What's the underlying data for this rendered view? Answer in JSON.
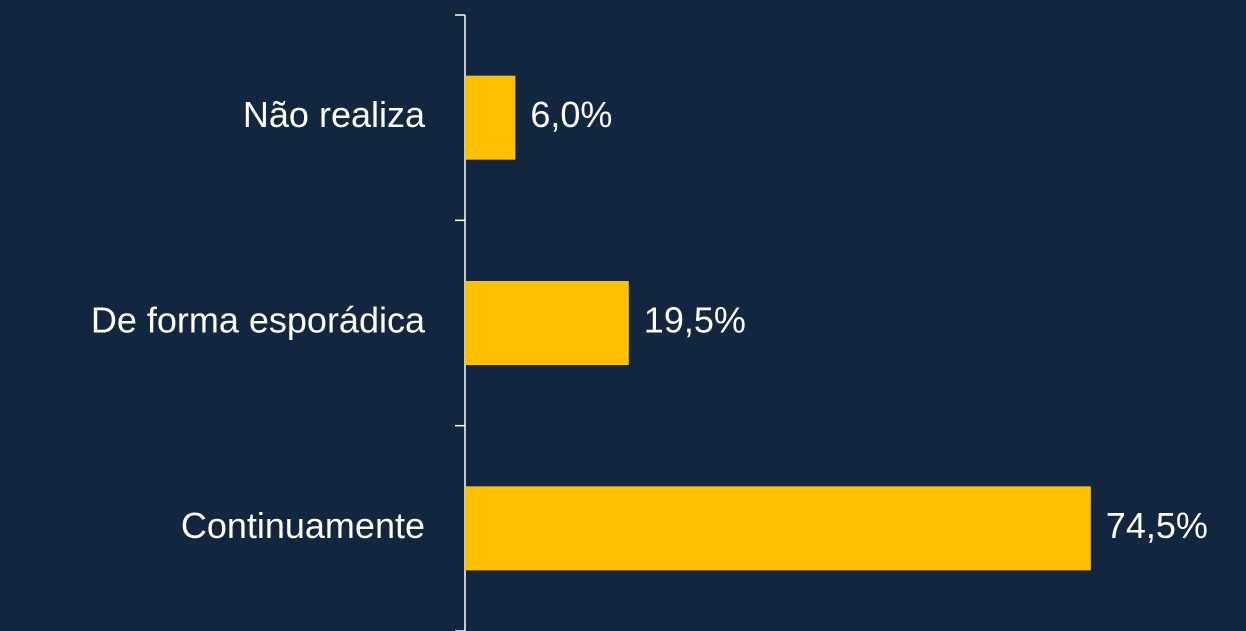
{
  "chart_data": {
    "type": "bar",
    "orientation": "horizontal",
    "categories": [
      "Não realiza",
      "De forma esporádica",
      "Continuamente"
    ],
    "values": [
      6.0,
      19.5,
      74.5
    ],
    "value_labels": [
      "6,0%",
      "19,5%",
      "74,5%"
    ],
    "color": "#FFC000"
  }
}
